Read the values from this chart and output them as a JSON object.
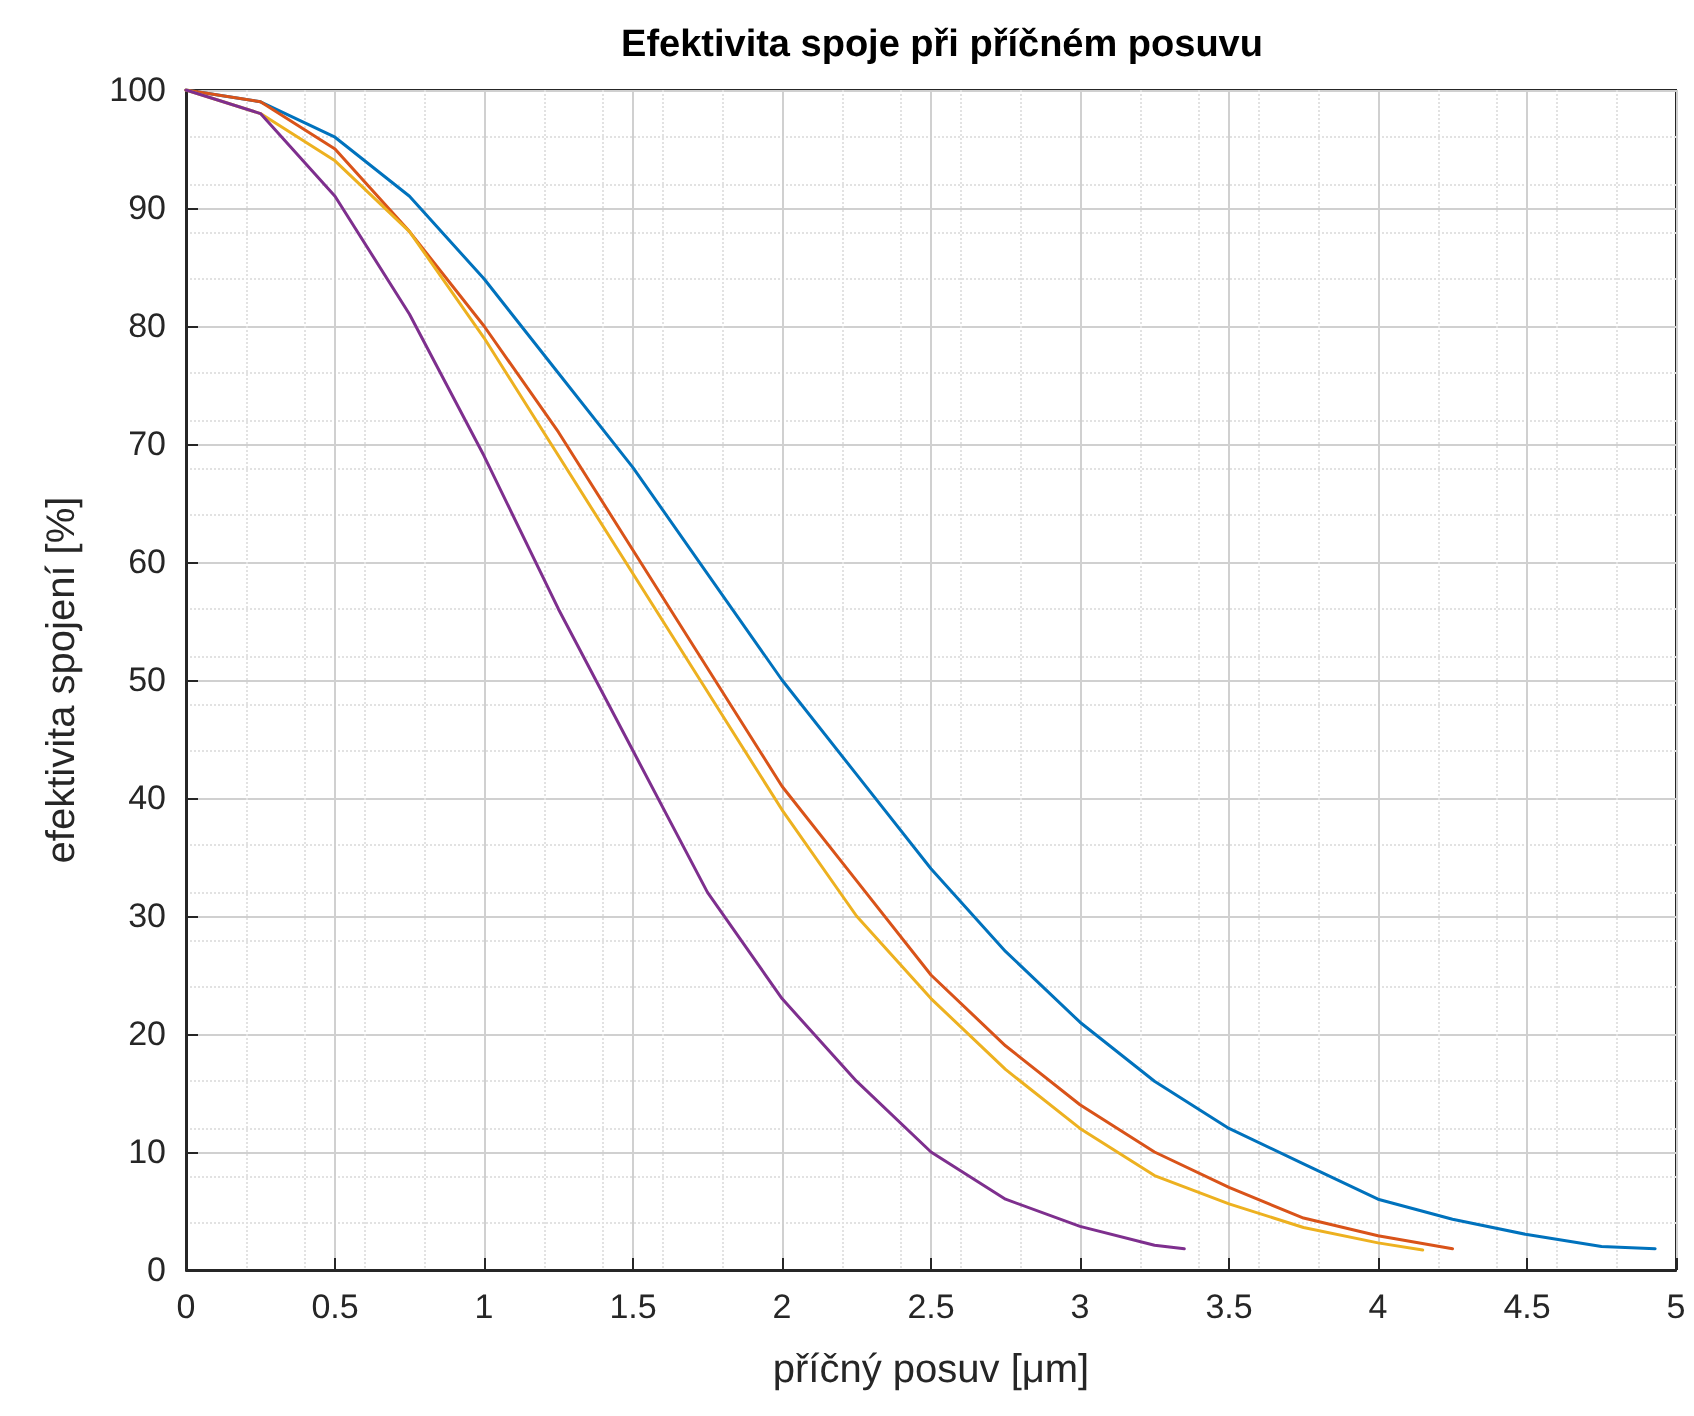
{
  "chart_data": {
    "type": "line",
    "title": "Efektivita spoje při příčném posuvu",
    "xlabel": "příčný posuv [μm]",
    "ylabel": "efektivita spojení [%]",
    "xlim": [
      0,
      5
    ],
    "xticks": [
      0,
      0.5,
      1,
      1.5,
      2,
      2.5,
      3,
      3.5,
      4,
      4.5,
      5
    ],
    "ylim": [
      0,
      100
    ],
    "yticks": [
      0,
      10,
      20,
      30,
      40,
      50,
      60,
      70,
      80,
      90,
      100
    ],
    "grid": true,
    "line_style": "solid",
    "marker": "none",
    "series": [
      {
        "color": "#0072bd",
        "x": [
          0,
          0.25,
          0.5,
          0.75,
          1,
          1.25,
          1.5,
          1.75,
          2,
          2.25,
          2.5,
          2.75,
          3,
          3.25,
          3.5,
          3.75,
          4,
          4.25,
          4.5,
          4.75,
          4.93
        ],
        "values": [
          100,
          99,
          96,
          91,
          84,
          76,
          68,
          59,
          50,
          42,
          34,
          27,
          21,
          16,
          12,
          9,
          6,
          4.3,
          3,
          2,
          1.8
        ]
      },
      {
        "color": "#d95319",
        "x": [
          0,
          0.25,
          0.5,
          0.75,
          1,
          1.25,
          1.5,
          1.75,
          2,
          2.25,
          2.5,
          2.75,
          3,
          3.25,
          3.5,
          3.75,
          4,
          4.25
        ],
        "values": [
          100,
          99,
          95,
          88,
          80,
          71,
          61,
          51,
          41,
          33,
          25,
          19,
          14,
          10,
          7,
          4.4,
          2.9,
          1.8
        ]
      },
      {
        "color": "#edb120",
        "x": [
          0,
          0.25,
          0.5,
          0.75,
          1,
          1.25,
          1.5,
          1.75,
          2,
          2.25,
          2.5,
          2.75,
          3,
          3.25,
          3.5,
          3.75,
          4,
          4.15
        ],
        "values": [
          100,
          98,
          94,
          88,
          79,
          69,
          59,
          49,
          39,
          30,
          23,
          17,
          12,
          8,
          5.6,
          3.6,
          2.3,
          1.7
        ]
      },
      {
        "color": "#7e2f8e",
        "x": [
          0,
          0.25,
          0.5,
          0.75,
          1,
          1.25,
          1.5,
          1.75,
          2,
          2.25,
          2.5,
          2.75,
          3,
          3.25,
          3.35
        ],
        "values": [
          100,
          98,
          91,
          81,
          69,
          56,
          44,
          32,
          23,
          16,
          10,
          6,
          3.7,
          2.1,
          1.8
        ]
      }
    ]
  }
}
